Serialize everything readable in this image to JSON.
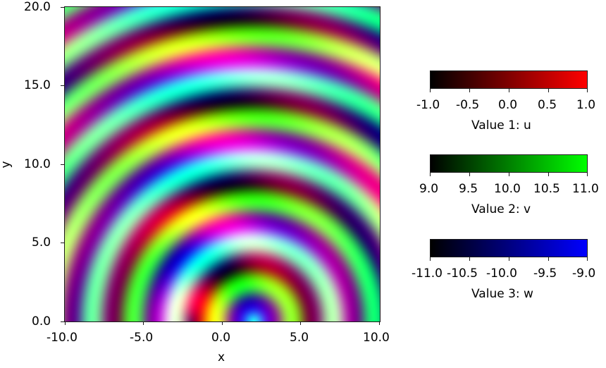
{
  "chart_data": {
    "type": "heatmap",
    "title": "",
    "description": "RGB composite image of three fields u, v, w mapped to red, green, blue channels",
    "xlabel": "x",
    "ylabel": "y",
    "xlim": [
      -10.0,
      10.0
    ],
    "ylim": [
      0.0,
      20.0
    ],
    "x_ticks": [
      "-10.0",
      "-5.0",
      "0.0",
      "5.0",
      "10.0"
    ],
    "y_ticks": [
      "0.0",
      "5.0",
      "10.0",
      "15.0",
      "20.0"
    ],
    "colorbars": [
      {
        "label": "Value 1: u",
        "channel": "red",
        "color_low": "#000000",
        "color_high": "#ff0000",
        "range": [
          -1.0,
          1.0
        ],
        "ticks": [
          "-1.0",
          "-0.5",
          "0.0",
          "0.5",
          "1.0"
        ]
      },
      {
        "label": "Value 2: v",
        "channel": "green",
        "color_low": "#000000",
        "color_high": "#00ff00",
        "range": [
          9.0,
          11.0
        ],
        "ticks": [
          "9.0",
          "9.5",
          "10.0",
          "10.5",
          "11.0"
        ]
      },
      {
        "label": "Value 3: w",
        "channel": "blue",
        "color_low": "#000000",
        "color_high": "#0000ff",
        "range": [
          -11.0,
          -9.0
        ],
        "ticks": [
          "-11.0",
          "-10.5",
          "-10.0",
          "-9.5",
          "-9.0"
        ]
      }
    ],
    "grid": false
  },
  "axes": {
    "xlabel": "x",
    "ylabel": "y",
    "x_ticks": [
      "-10.0",
      "-5.0",
      "0.0",
      "5.0",
      "10.0"
    ],
    "y_ticks": [
      "0.0",
      "5.0",
      "10.0",
      "15.0",
      "20.0"
    ]
  },
  "colorbars": [
    {
      "label": "Value 1: u",
      "ticks": [
        "-1.0",
        "-0.5",
        "0.0",
        "0.5",
        "1.0"
      ],
      "color_high": "#ff0000"
    },
    {
      "label": "Value 2: v",
      "ticks": [
        "9.0",
        "9.5",
        "10.0",
        "10.5",
        "11.0"
      ],
      "color_high": "#00ff00"
    },
    {
      "label": "Value 3: w",
      "ticks": [
        "-11.0",
        "-10.5",
        "-10.0",
        "-9.5",
        "-9.0"
      ],
      "color_high": "#0000ff"
    }
  ]
}
